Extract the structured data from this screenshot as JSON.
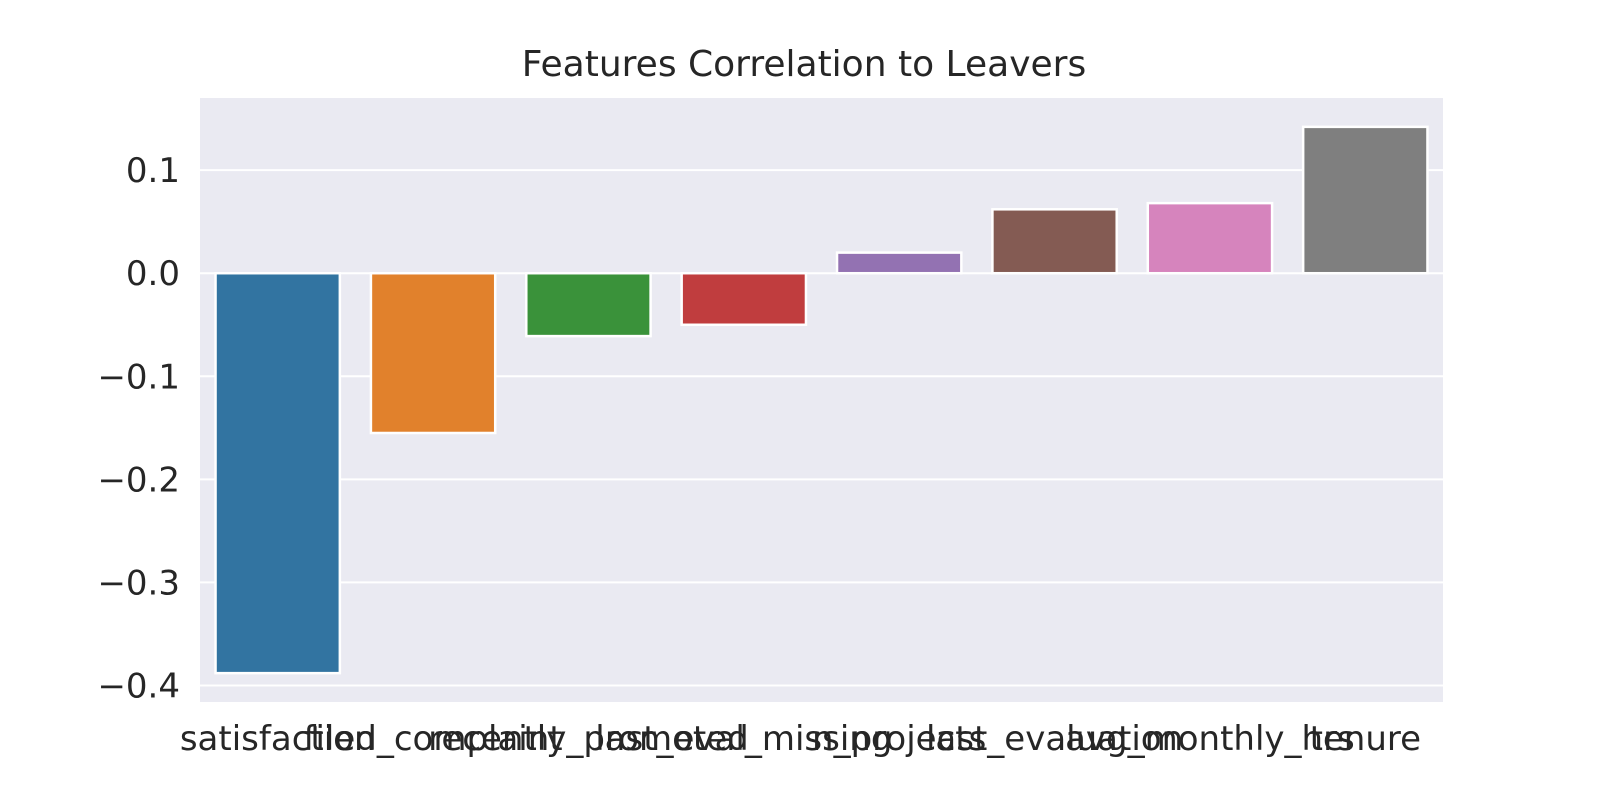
{
  "chart_data": {
    "type": "bar",
    "title": "Features Correlation to Leavers",
    "xlabel": "",
    "ylabel": "",
    "categories": [
      "satisfaction",
      "filed_complaint",
      "recently_promoted",
      "last_eval_missing",
      "n_projects",
      "last_evaluation",
      "avg_monthly_hrs",
      "tenure"
    ],
    "values": [
      -0.388,
      -0.155,
      -0.061,
      -0.05,
      0.02,
      0.062,
      0.068,
      0.142
    ],
    "colors": [
      "#3274a1",
      "#e1812c",
      "#3a923a",
      "#c03d3e",
      "#9372b2",
      "#845b53",
      "#d684bd",
      "#7f7f7f"
    ],
    "ylim": [
      -0.416,
      0.17
    ],
    "yticks": [
      0.1,
      0.0,
      -0.1,
      -0.2,
      -0.3,
      -0.4
    ],
    "ytick_labels": [
      "0.1",
      "0.0",
      "−0.1",
      "−0.2",
      "−0.3",
      "−0.4"
    ],
    "grid": true,
    "style": {
      "background": "#eaeaf2",
      "grid_color": "#ffffff"
    }
  }
}
